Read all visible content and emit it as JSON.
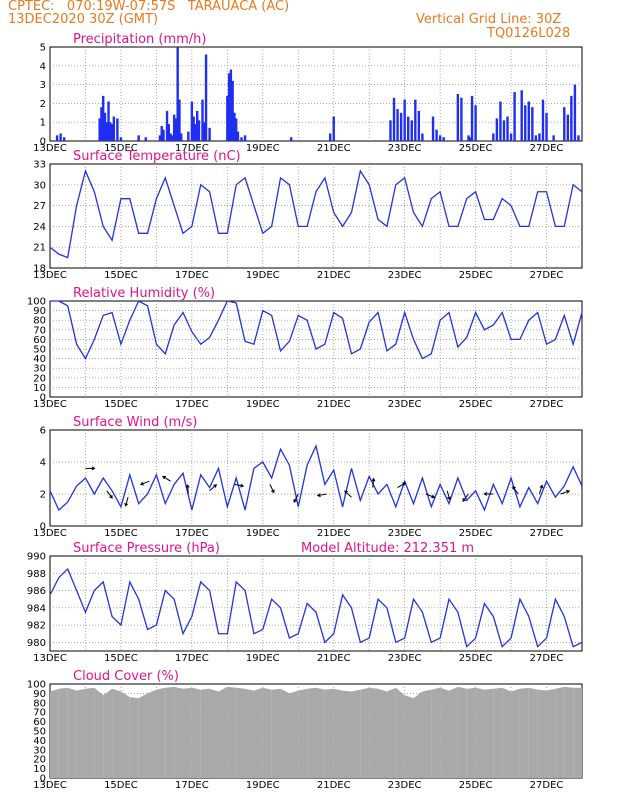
{
  "header": {
    "station": "CPTEC:   070:19W-07:57S   TARAUACA (AC)",
    "run_date": "13DEC2020 30Z (GMT)",
    "grid_note": "Vertical Grid Line: 30Z",
    "product_code": "TQ0126L028",
    "model_altitude": "Model Altitude: 212.351 m"
  },
  "colors": {
    "header": "#e87a1e",
    "titles": "#e0148c",
    "line": "#2233dd",
    "bar": "#1f2ef0",
    "cloud": "#a9a9a9",
    "arrow": "#000000"
  },
  "x_labels": [
    "13DEC",
    "15DEC",
    "17DEC",
    "19DEC",
    "21DEC",
    "23DEC",
    "25DEC",
    "27DEC"
  ],
  "chart_data": [
    {
      "type": "bar",
      "title": "Precipitation (mm/h)",
      "ylim": [
        0,
        5
      ],
      "yticks": [
        0,
        1,
        2,
        3,
        4,
        5
      ],
      "x_unit": "days since 13DEC 00Z",
      "x": [
        0.2,
        0.3,
        0.4,
        1.4,
        1.45,
        1.5,
        1.55,
        1.6,
        1.65,
        1.7,
        1.75,
        1.8,
        1.9,
        2.0,
        2.5,
        2.7,
        3.1,
        3.15,
        3.2,
        3.3,
        3.35,
        3.4,
        3.45,
        3.5,
        3.55,
        3.6,
        3.65,
        3.7,
        3.9,
        4.0,
        4.05,
        4.1,
        4.15,
        4.2,
        4.3,
        4.35,
        4.4,
        4.5,
        5.0,
        5.05,
        5.1,
        5.15,
        5.2,
        5.25,
        5.3,
        5.4,
        5.5,
        6.8,
        7.9,
        8.0,
        9.6,
        9.7,
        9.8,
        9.9,
        10.0,
        10.1,
        10.2,
        10.3,
        10.4,
        10.5,
        10.8,
        10.9,
        11.0,
        11.1,
        11.5,
        11.6,
        11.8,
        11.85,
        11.9,
        12.0,
        12.5,
        12.6,
        12.7,
        12.8,
        12.9,
        13.0,
        13.1,
        13.3,
        13.4,
        13.5,
        13.6,
        13.7,
        13.8,
        13.9,
        14.0,
        14.2,
        14.5,
        14.6,
        14.7,
        14.8,
        14.9
      ],
      "values": [
        0.3,
        0.4,
        0.2,
        1.2,
        1.8,
        2.4,
        1.5,
        1.0,
        2.1,
        1.0,
        0.9,
        1.3,
        1.2,
        0.2,
        0.3,
        0.2,
        0.3,
        0.8,
        0.6,
        1.6,
        0.9,
        0.4,
        0.3,
        1.4,
        1.2,
        5.0,
        2.2,
        0.4,
        0.5,
        2.1,
        1.3,
        0.9,
        1.6,
        1.1,
        2.2,
        1.0,
        4.6,
        0.7,
        2.4,
        3.6,
        3.8,
        3.2,
        1.5,
        1.2,
        0.5,
        0.2,
        0.3,
        0.2,
        0.4,
        1.3,
        1.1,
        2.3,
        1.7,
        1.5,
        2.2,
        1.3,
        1.1,
        2.2,
        1.6,
        0.4,
        1.3,
        0.6,
        0.3,
        0.2,
        2.5,
        2.3,
        0.3,
        0.2,
        2.4,
        1.9,
        0.4,
        1.2,
        2.1,
        1.1,
        1.3,
        0.4,
        2.6,
        2.7,
        1.9,
        2.1,
        1.8,
        0.3,
        0.4,
        2.2,
        1.5,
        0.3,
        1.8,
        1.4,
        2.4,
        3.0,
        0.3
      ]
    },
    {
      "type": "line",
      "title": "Surface Temperature (nC)",
      "ylim": [
        18,
        33
      ],
      "yticks": [
        18,
        21,
        24,
        27,
        30,
        33
      ],
      "x_unit": "days since 13DEC 00Z",
      "x": [
        0,
        0.25,
        0.5,
        0.75,
        1,
        1.25,
        1.5,
        1.75,
        2,
        2.25,
        2.5,
        2.75,
        3,
        3.25,
        3.5,
        3.75,
        4,
        4.25,
        4.5,
        4.75,
        5,
        5.25,
        5.5,
        5.75,
        6,
        6.25,
        6.5,
        6.75,
        7,
        7.25,
        7.5,
        7.75,
        8,
        8.25,
        8.5,
        8.75,
        9,
        9.25,
        9.5,
        9.75,
        10,
        10.25,
        10.5,
        10.75,
        11,
        11.25,
        11.5,
        11.75,
        12,
        12.25,
        12.5,
        12.75,
        13,
        13.25,
        13.5,
        13.75,
        14,
        14.25,
        14.5,
        14.75,
        15
      ],
      "values": [
        21,
        20,
        19.5,
        27,
        32,
        29,
        24,
        22,
        28,
        28,
        23,
        23,
        28,
        31,
        27,
        23,
        24,
        30,
        29,
        23,
        23,
        30,
        31,
        27,
        23,
        24,
        31,
        30,
        24,
        24,
        29,
        31,
        26,
        24,
        26,
        32,
        30,
        25,
        24,
        30,
        31,
        26,
        24,
        28,
        29,
        24,
        24,
        28,
        29,
        25,
        25,
        28,
        27,
        24,
        24,
        29,
        29,
        24,
        24,
        30,
        29
      ]
    },
    {
      "type": "line",
      "title": "Relative Humidity (%)",
      "ylim": [
        0,
        100
      ],
      "yticks": [
        0,
        10,
        20,
        30,
        40,
        50,
        60,
        70,
        80,
        90,
        100
      ],
      "x_unit": "days since 13DEC 00Z",
      "x": [
        0,
        0.25,
        0.5,
        0.75,
        1,
        1.25,
        1.5,
        1.75,
        2,
        2.25,
        2.5,
        2.75,
        3,
        3.25,
        3.5,
        3.75,
        4,
        4.25,
        4.5,
        4.75,
        5,
        5.25,
        5.5,
        5.75,
        6,
        6.25,
        6.5,
        6.75,
        7,
        7.25,
        7.5,
        7.75,
        8,
        8.25,
        8.5,
        8.75,
        9,
        9.25,
        9.5,
        9.75,
        10,
        10.25,
        10.5,
        10.75,
        11,
        11.25,
        11.5,
        11.75,
        12,
        12.25,
        12.5,
        12.75,
        13,
        13.25,
        13.5,
        13.75,
        14,
        14.25,
        14.5,
        14.75,
        15
      ],
      "values": [
        100,
        100,
        95,
        55,
        40,
        60,
        85,
        88,
        55,
        80,
        100,
        95,
        55,
        45,
        75,
        88,
        68,
        55,
        62,
        80,
        100,
        98,
        58,
        55,
        90,
        85,
        48,
        58,
        85,
        80,
        50,
        55,
        88,
        82,
        45,
        50,
        78,
        88,
        48,
        55,
        88,
        60,
        40,
        45,
        80,
        88,
        52,
        62,
        88,
        70,
        75,
        88,
        60,
        60,
        80,
        88,
        55,
        60,
        85,
        55,
        88
      ]
    },
    {
      "type": "line",
      "title": "Surface Wind (m/s)",
      "ylim": [
        0,
        6
      ],
      "yticks": [
        0,
        2,
        4,
        6
      ],
      "x_unit": "days since 13DEC 00Z",
      "x": [
        0,
        0.25,
        0.5,
        0.75,
        1,
        1.25,
        1.5,
        1.75,
        2,
        2.25,
        2.5,
        2.75,
        3,
        3.25,
        3.5,
        3.75,
        4,
        4.25,
        4.5,
        4.75,
        5,
        5.25,
        5.5,
        5.75,
        6,
        6.25,
        6.5,
        6.75,
        7,
        7.25,
        7.5,
        7.75,
        8,
        8.25,
        8.5,
        8.75,
        9,
        9.25,
        9.5,
        9.75,
        10,
        10.25,
        10.5,
        10.75,
        11,
        11.25,
        11.5,
        11.75,
        12,
        12.25,
        12.5,
        12.75,
        13,
        13.25,
        13.5,
        13.75,
        14,
        14.25,
        14.5,
        14.75,
        15
      ],
      "values": [
        2.2,
        1.0,
        1.5,
        2.5,
        3.0,
        2.0,
        3.0,
        2.2,
        1.2,
        3.2,
        1.4,
        2.0,
        3.2,
        1.4,
        2.6,
        3.3,
        1.0,
        3.2,
        2.4,
        3.6,
        1.2,
        3.0,
        1.0,
        3.6,
        4.0,
        3.0,
        4.8,
        3.8,
        1.2,
        3.8,
        5.0,
        2.6,
        3.5,
        1.2,
        3.6,
        1.6,
        3.1,
        2.0,
        2.6,
        1.2,
        2.8,
        1.4,
        3.0,
        1.2,
        2.6,
        1.4,
        3.0,
        1.6,
        2.2,
        1.0,
        2.6,
        1.4,
        3.0,
        1.2,
        2.4,
        1.4,
        2.8,
        1.8,
        2.5,
        3.7,
        2.5
      ]
    },
    {
      "type": "line",
      "title": "Surface Pressure (hPa)",
      "ylim": [
        979,
        990
      ],
      "yticks": [
        980,
        982,
        984,
        986,
        988,
        990
      ],
      "x_unit": "days since 13DEC 00Z",
      "x": [
        0,
        0.25,
        0.5,
        0.75,
        1,
        1.25,
        1.5,
        1.75,
        2,
        2.25,
        2.5,
        2.75,
        3,
        3.25,
        3.5,
        3.75,
        4,
        4.25,
        4.5,
        4.75,
        5,
        5.25,
        5.5,
        5.75,
        6,
        6.25,
        6.5,
        6.75,
        7,
        7.25,
        7.5,
        7.75,
        8,
        8.25,
        8.5,
        8.75,
        9,
        9.25,
        9.5,
        9.75,
        10,
        10.25,
        10.5,
        10.75,
        11,
        11.25,
        11.5,
        11.75,
        12,
        12.25,
        12.5,
        12.75,
        13,
        13.25,
        13.5,
        13.75,
        14,
        14.25,
        14.5,
        14.75,
        15
      ],
      "values": [
        985.5,
        987.5,
        988.5,
        986,
        983.5,
        986,
        987,
        983,
        982,
        987,
        985,
        981.5,
        982,
        986,
        985,
        981,
        983,
        987,
        986,
        981,
        981,
        987,
        986,
        981,
        981.5,
        985,
        984,
        980.5,
        981,
        984.5,
        983.5,
        980,
        981,
        985.5,
        984,
        980,
        980.5,
        985,
        984,
        980,
        980.5,
        985,
        983.5,
        980,
        980.5,
        985,
        983.5,
        979.5,
        980.5,
        984.5,
        983,
        979.5,
        980.5,
        985,
        983,
        979.5,
        980.5,
        985,
        983,
        979.5,
        980
      ]
    },
    {
      "type": "area",
      "title": "Cloud Cover (%)",
      "ylim": [
        0,
        100
      ],
      "yticks": [
        0,
        10,
        20,
        30,
        40,
        50,
        60,
        70,
        80,
        90,
        100
      ],
      "x_unit": "days since 13DEC 00Z",
      "x": [
        0,
        0.25,
        0.5,
        0.75,
        1,
        1.25,
        1.5,
        1.75,
        2,
        2.25,
        2.5,
        2.75,
        3,
        3.25,
        3.5,
        3.75,
        4,
        4.25,
        4.5,
        4.75,
        5,
        5.25,
        5.5,
        5.75,
        6,
        6.25,
        6.5,
        6.75,
        7,
        7.25,
        7.5,
        7.75,
        8,
        8.25,
        8.5,
        8.75,
        9,
        9.25,
        9.5,
        9.75,
        10,
        10.25,
        10.5,
        10.75,
        11,
        11.25,
        11.5,
        11.75,
        12,
        12.25,
        12.5,
        12.75,
        13,
        13.25,
        13.5,
        13.75,
        14,
        14.25,
        14.5,
        14.75,
        15
      ],
      "values": [
        92,
        95,
        96,
        93,
        95,
        96,
        88,
        95,
        92,
        86,
        85,
        90,
        94,
        96,
        97,
        95,
        96,
        94,
        95,
        92,
        97,
        96,
        95,
        93,
        96,
        94,
        95,
        90,
        93,
        95,
        96,
        94,
        95,
        93,
        92,
        94,
        96,
        95,
        92,
        96,
        88,
        85,
        92,
        94,
        96,
        93,
        97,
        95,
        96,
        94,
        95,
        96,
        92,
        95,
        96,
        94,
        93,
        95,
        97,
        96,
        96
      ]
    }
  ]
}
